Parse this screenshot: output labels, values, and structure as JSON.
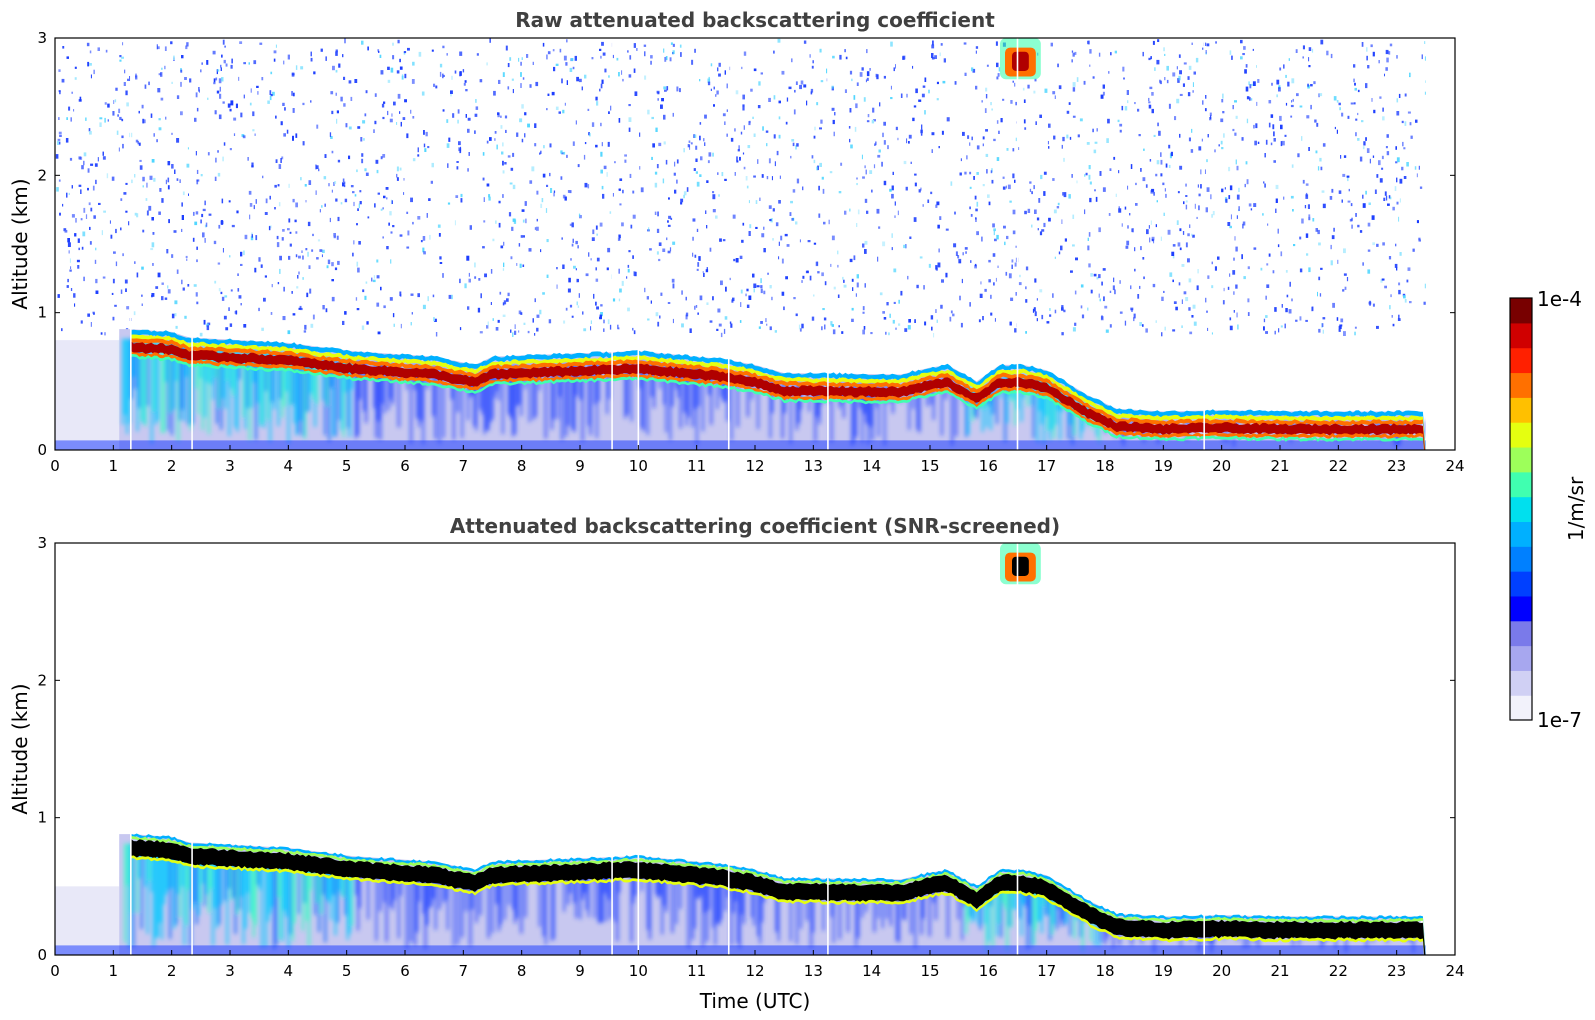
{
  "chart_data": [
    {
      "type": "heatmap",
      "title": "Raw attenuated backscattering coefficient",
      "xlabel": "",
      "ylabel": "Altitude (km)",
      "xlim": [
        0,
        24
      ],
      "ylim": [
        0,
        3
      ],
      "xticks": [
        "0",
        "1",
        "2",
        "3",
        "4",
        "5",
        "6",
        "7",
        "8",
        "9",
        "10",
        "11",
        "12",
        "13",
        "14",
        "15",
        "16",
        "17",
        "18",
        "19",
        "20",
        "21",
        "22",
        "23",
        "24"
      ],
      "yticks": [
        "0",
        "1",
        "2",
        "3"
      ],
      "data_end_hour": 23.5,
      "gap_hours": [
        1.3,
        2.35,
        9.55,
        10.0,
        11.55,
        13.25,
        16.5,
        19.7
      ],
      "layer_top_km": [
        [
          1.3,
          0.88
        ],
        [
          2.0,
          0.86
        ],
        [
          2.3,
          0.82
        ],
        [
          4.0,
          0.78
        ],
        [
          5.1,
          0.72
        ],
        [
          6.5,
          0.68
        ],
        [
          7.2,
          0.62
        ],
        [
          7.5,
          0.68
        ],
        [
          10.0,
          0.72
        ],
        [
          11.5,
          0.66
        ],
        [
          12.0,
          0.62
        ],
        [
          12.5,
          0.56
        ],
        [
          14.5,
          0.55
        ],
        [
          15.0,
          0.6
        ],
        [
          15.3,
          0.62
        ],
        [
          15.8,
          0.5
        ],
        [
          16.2,
          0.62
        ],
        [
          16.6,
          0.62
        ],
        [
          17.0,
          0.58
        ],
        [
          17.7,
          0.4
        ],
        [
          18.2,
          0.3
        ],
        [
          19.0,
          0.28
        ],
        [
          20.0,
          0.29
        ],
        [
          21.0,
          0.28
        ],
        [
          22.5,
          0.28
        ],
        [
          23.5,
          0.28
        ]
      ],
      "elevated_cloud": {
        "time_hours": [
          16.2,
          16.9
        ],
        "altitude_km": [
          2.7,
          3.0
        ]
      },
      "screened": false
    },
    {
      "type": "heatmap",
      "title": "Attenuated backscattering coefficient (SNR-screened)",
      "xlabel": "Time (UTC)",
      "ylabel": "Altitude (km)",
      "xlim": [
        0,
        24
      ],
      "ylim": [
        0,
        3
      ],
      "xticks": [
        "0",
        "1",
        "2",
        "3",
        "4",
        "5",
        "6",
        "7",
        "8",
        "9",
        "10",
        "11",
        "12",
        "13",
        "14",
        "15",
        "16",
        "17",
        "18",
        "19",
        "20",
        "21",
        "22",
        "23",
        "24"
      ],
      "yticks": [
        "0",
        "1",
        "2",
        "3"
      ],
      "data_end_hour": 23.5,
      "screened": true
    }
  ],
  "colorbar": {
    "label": "1/m/sr",
    "max_label": "1e-4",
    "min_label": "1e-7",
    "colors": [
      "#f2f2fb",
      "#d0d0f4",
      "#a7a7ef",
      "#7a7aea",
      "#0000ff",
      "#0040ff",
      "#0080ff",
      "#00b0ff",
      "#00e0ee",
      "#40ffb0",
      "#9dff5a",
      "#e5ff10",
      "#ffc000",
      "#ff7000",
      "#ff2000",
      "#d00000",
      "#780000"
    ]
  },
  "colors": {
    "cloud_core_screened": "#000000",
    "noise_blue": "#1a3cff",
    "noise_cyan": "#4fd6ff"
  }
}
